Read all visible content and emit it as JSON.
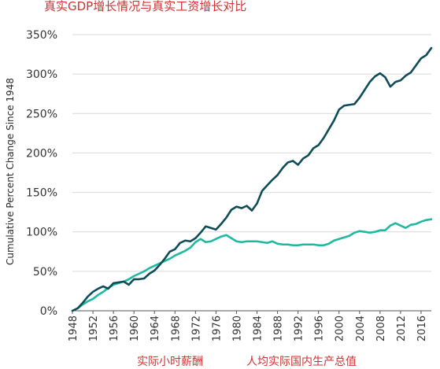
{
  "chart_data": {
    "type": "line",
    "title": "真实GDP增长情况与真实工资增长对比",
    "ylabel": "Cumulative Percent Change Since 1948",
    "xlabel": "",
    "ylim": [
      0,
      350
    ],
    "xlim": [
      1948,
      2018
    ],
    "y_ticks": [
      0,
      50,
      100,
      150,
      200,
      250,
      300,
      350
    ],
    "y_tick_labels": [
      "0%",
      "50%",
      "100%",
      "150%",
      "200%",
      "250%",
      "300%",
      "350%"
    ],
    "x_ticks": [
      1948,
      1952,
      1956,
      1960,
      1964,
      1968,
      1972,
      1976,
      1980,
      1984,
      1988,
      1992,
      1996,
      2000,
      2004,
      2008,
      2012,
      2016
    ],
    "x_tick_labels": [
      "1948",
      "1952",
      "1956",
      "1960",
      "1964",
      "1968",
      "1972",
      "1976",
      "1980",
      "1984",
      "1988",
      "1992",
      "1996",
      "2000",
      "2004",
      "2008",
      "2012",
      "2016"
    ],
    "grid": "horizontal",
    "legend_position": "bottom",
    "series": [
      {
        "name": "人均实际国内生产总值",
        "color": "#0e4c58",
        "x": [
          1948,
          1949,
          1950,
          1951,
          1952,
          1953,
          1954,
          1955,
          1956,
          1957,
          1958,
          1959,
          1960,
          1961,
          1962,
          1963,
          1964,
          1965,
          1966,
          1967,
          1968,
          1969,
          1970,
          1971,
          1972,
          1973,
          1974,
          1975,
          1976,
          1977,
          1978,
          1979,
          1980,
          1981,
          1982,
          1983,
          1984,
          1985,
          1986,
          1987,
          1988,
          1989,
          1990,
          1991,
          1992,
          1993,
          1994,
          1995,
          1996,
          1997,
          1998,
          1999,
          2000,
          2001,
          2002,
          2003,
          2004,
          2005,
          2006,
          2007,
          2008,
          2009,
          2010,
          2011,
          2012,
          2013,
          2014,
          2015,
          2016,
          2017,
          2018
        ],
        "values": [
          0,
          3,
          10,
          18,
          24,
          28,
          31,
          28,
          35,
          36,
          37,
          33,
          40,
          40,
          41,
          47,
          51,
          58,
          66,
          75,
          78,
          86,
          89,
          88,
          92,
          99,
          107,
          105,
          103,
          110,
          118,
          128,
          132,
          130,
          133,
          127,
          136,
          152,
          159,
          166,
          172,
          181,
          188,
          190,
          185,
          193,
          197,
          206,
          210,
          219,
          230,
          241,
          255,
          260,
          261,
          262,
          270,
          280,
          290,
          297,
          301,
          296,
          284,
          290,
          292,
          298,
          302,
          311,
          320,
          324,
          333
        ]
      },
      {
        "name": "实际小时薪酬",
        "color": "#20b9a0",
        "x": [
          1948,
          1949,
          1950,
          1951,
          1952,
          1953,
          1954,
          1955,
          1956,
          1957,
          1958,
          1959,
          1960,
          1961,
          1962,
          1963,
          1964,
          1965,
          1966,
          1967,
          1968,
          1969,
          1970,
          1971,
          1972,
          1973,
          1974,
          1975,
          1976,
          1977,
          1978,
          1979,
          1980,
          1981,
          1982,
          1983,
          1984,
          1985,
          1986,
          1987,
          1988,
          1989,
          1990,
          1991,
          1992,
          1993,
          1994,
          1995,
          1996,
          1997,
          1998,
          1999,
          2000,
          2001,
          2002,
          2003,
          2004,
          2005,
          2006,
          2007,
          2008,
          2009,
          2010,
          2011,
          2012,
          2013,
          2014,
          2015,
          2016,
          2017,
          2018
        ],
        "values": [
          0,
          3,
          8,
          12,
          15,
          20,
          24,
          29,
          33,
          35,
          37,
          40,
          44,
          47,
          50,
          54,
          57,
          60,
          63,
          66,
          70,
          73,
          76,
          80,
          87,
          91,
          87,
          88,
          91,
          94,
          96,
          92,
          88,
          87,
          88,
          88,
          88,
          87,
          86,
          88,
          85,
          84,
          84,
          83,
          83,
          84,
          84,
          84,
          83,
          83,
          85,
          89,
          91,
          93,
          95,
          99,
          101,
          100,
          99,
          100,
          102,
          102,
          108,
          111,
          108,
          105,
          109,
          110,
          113,
          115,
          116
        ]
      }
    ]
  }
}
